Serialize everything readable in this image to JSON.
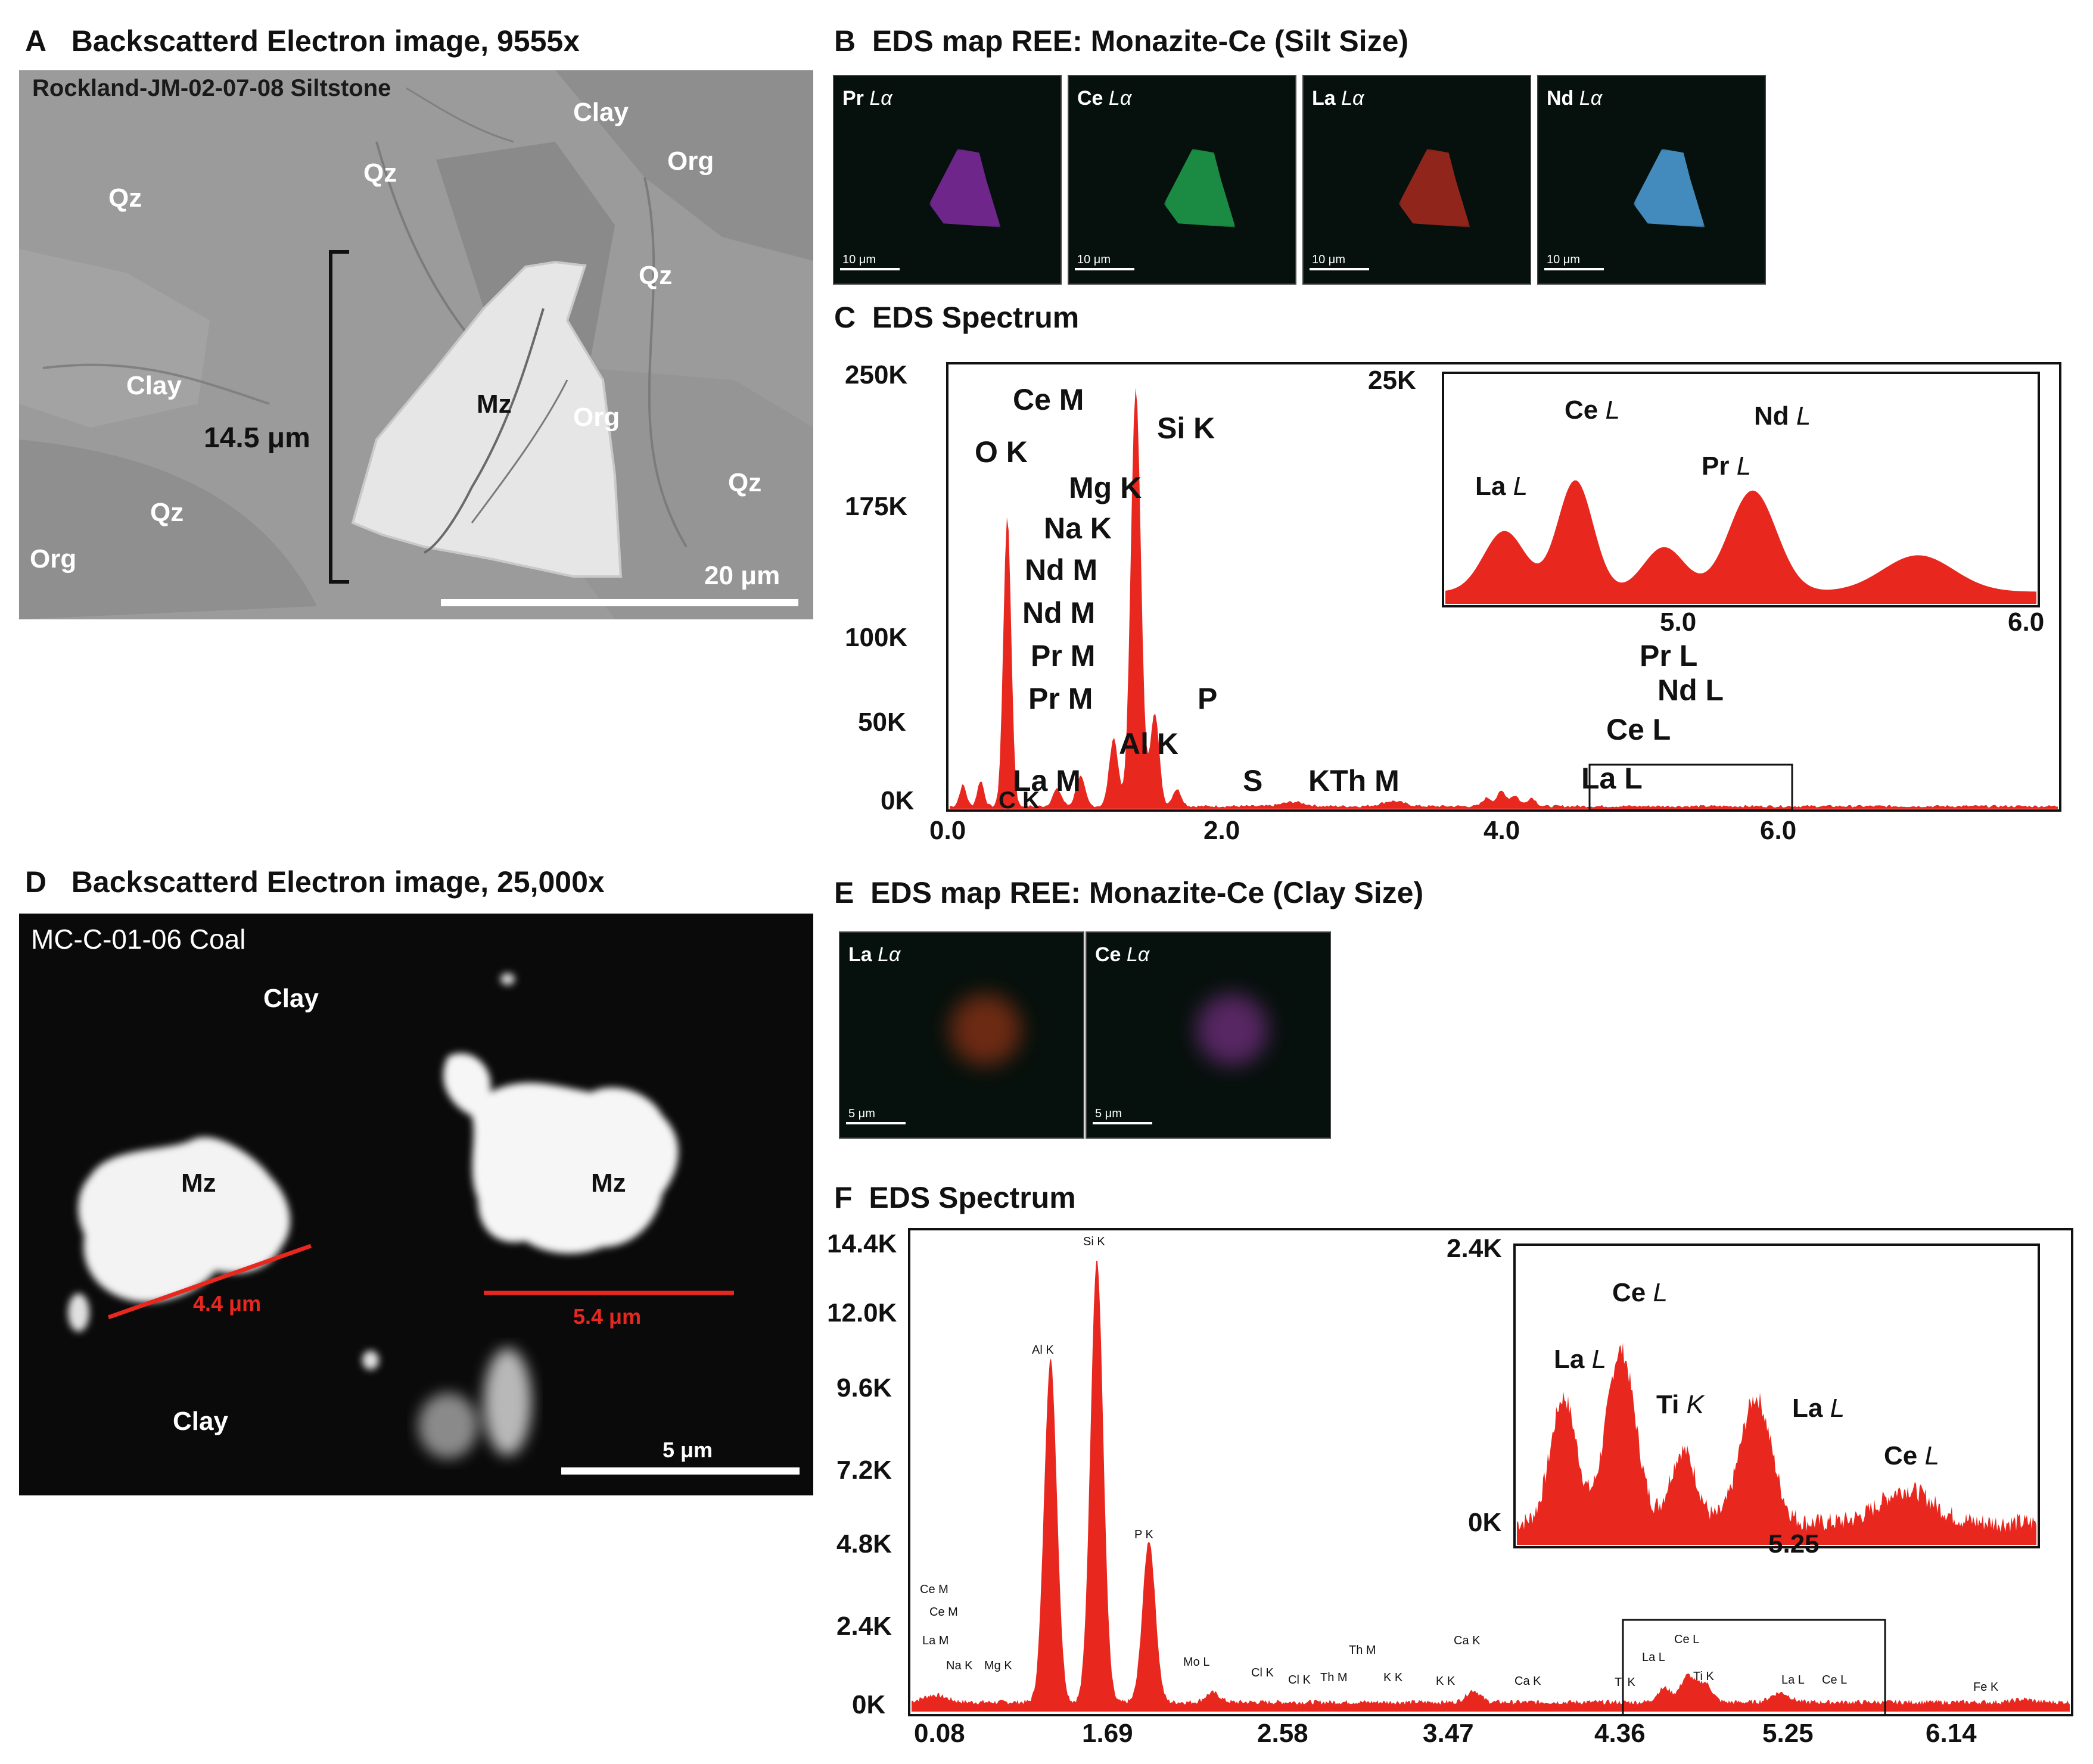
{
  "panelA": {
    "letter": "A",
    "title": "Backscatterd Electron image, 9555x",
    "sample": "Rockland-JM-02-07-08 Siltstone",
    "labels": {
      "clay1": "Clay",
      "clay2": "Clay",
      "qz1": "Qz",
      "qz2": "Qz",
      "qz3": "Qz",
      "qz4": "Qz",
      "qz5": "Qz",
      "org1": "Org",
      "org2": "Org",
      "org3": "Org",
      "mz": "Mz"
    },
    "size_label": "14.5 μm",
    "scale_label": "20 μm"
  },
  "panelB": {
    "letter": "B",
    "title": "EDS map REE: Monazite-Ce (Silt Size)",
    "maps": [
      {
        "element": "Pr",
        "line": "Lα",
        "scale": "10 μm",
        "color": "#7a2a9a"
      },
      {
        "element": "Ce",
        "line": "Lα",
        "scale": "10 μm",
        "color": "#1f9a4a"
      },
      {
        "element": "La",
        "line": "Lα",
        "scale": "10 μm",
        "color": "#a0281e"
      },
      {
        "element": "Nd",
        "line": "Lα",
        "scale": "10 μm",
        "color": "#4a9ad0"
      }
    ]
  },
  "panelC": {
    "letter": "C",
    "title": "EDS Spectrum",
    "y_ticks": [
      "250K",
      "175K",
      "100K",
      "50K",
      "0K"
    ],
    "x_ticks": [
      "0.0",
      "2.0",
      "4.0",
      "6.0"
    ],
    "peak_labels": [
      "Ce M",
      "Si K",
      "O K",
      "Mg K",
      "Na K",
      "Nd M",
      "Nd M",
      "Pr M",
      "Pr M",
      "P",
      "Al K",
      "La M",
      "C K",
      "S",
      "KTh M",
      "Pr L",
      "Nd L",
      "Ce L",
      "La L"
    ],
    "inset": {
      "y_top": "25K",
      "x_ticks": [
        "5.0",
        "6.0"
      ],
      "labels": {
        "ce": "Ce",
        "nd": "Nd",
        "la": "La",
        "pr": "Pr",
        "line": "L"
      }
    }
  },
  "panelD": {
    "letter": "D",
    "title": "Backscatterd Electron image, 25,000x",
    "sample": "MC-C-01-06 Coal",
    "labels": {
      "clay1": "Clay",
      "clay2": "Clay",
      "mz1": "Mz",
      "mz2": "Mz"
    },
    "size1": "4.4 μm",
    "size2": "5.4 μm",
    "scale_label": "5 μm"
  },
  "panelE": {
    "letter": "E",
    "title": "EDS map REE: Monazite-Ce (Clay Size)",
    "maps": [
      {
        "element": "La",
        "line": "Lα",
        "scale": "5 μm",
        "color": "#c0401a"
      },
      {
        "element": "Ce",
        "line": "Lα",
        "scale": "5 μm",
        "color": "#9a3aaa"
      }
    ]
  },
  "panelF": {
    "letter": "F",
    "title": "EDS Spectrum",
    "y_ticks": [
      "14.4K",
      "12.0K",
      "9.6K",
      "7.2K",
      "4.8K",
      "2.4K",
      "0K"
    ],
    "x_ticks": [
      "0.08",
      "1.69",
      "2.58",
      "3.47",
      "4.36",
      "5.25",
      "6.14"
    ],
    "peak_labels": [
      "Ce M",
      "Ce M",
      "La M",
      "Na K",
      "Mg K",
      "Al K",
      "Si K",
      "P K",
      "Mo L",
      "Cl K",
      "Cl K",
      "Th M",
      "Th M",
      "K K",
      "K K",
      "Ca K",
      "Ca K",
      "Ti K",
      "La L",
      "Ce L",
      "Ti K",
      "La L",
      "Ce L",
      "Fe K"
    ],
    "inset": {
      "y_top": "2.4K",
      "y_bottom": "0K",
      "x_tick": "5.25",
      "labels": {
        "ce1": "Ce",
        "la1": "La",
        "ti": "Ti",
        "la2": "La",
        "ce2": "Ce",
        "lline": "L",
        "kline": "K"
      }
    }
  },
  "colors": {
    "spectrum": "#e8271f",
    "frame": "#111111"
  }
}
